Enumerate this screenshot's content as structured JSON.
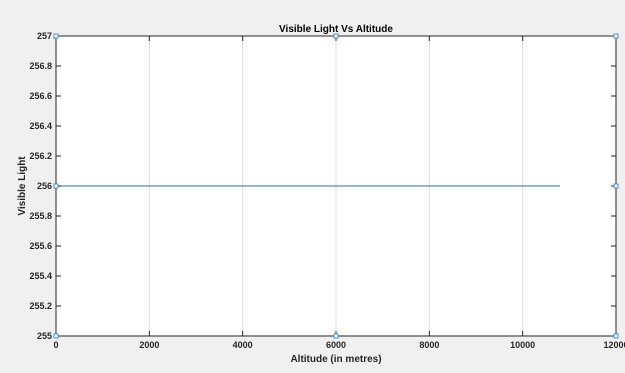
{
  "chart_data": {
    "type": "line",
    "title": "Visible Light Vs Altitude",
    "xlabel": "Altitude (in metres)",
    "ylabel": "Visible Light",
    "xlim": [
      0,
      12000
    ],
    "ylim": [
      255,
      257
    ],
    "xticks": [
      0,
      2000,
      4000,
      6000,
      8000,
      10000,
      12000
    ],
    "xtick_labels": [
      "0",
      "2000",
      "4000",
      "6000",
      "8000",
      "10000",
      "12000"
    ],
    "yticks": [
      255,
      255.2,
      255.4,
      255.6,
      255.8,
      256,
      256.2,
      256.4,
      256.6,
      256.8,
      257
    ],
    "ytick_labels": [
      "255",
      "255.2",
      "255.4",
      "255.6",
      "255.8",
      "256",
      "256.2",
      "256.4",
      "256.6",
      "256.8",
      "257"
    ],
    "grid": "vertical",
    "series": [
      {
        "x": [
          0,
          10800
        ],
        "y": [
          256,
          256
        ],
        "color": "#4a90c8"
      }
    ],
    "markers": [
      {
        "x": 0,
        "y": 257
      },
      {
        "x": 6000,
        "y": 257
      },
      {
        "x": 12000,
        "y": 257
      },
      {
        "x": 0,
        "y": 256
      },
      {
        "x": 12000,
        "y": 256
      },
      {
        "x": 0,
        "y": 255
      },
      {
        "x": 6000,
        "y": 255
      },
      {
        "x": 12000,
        "y": 255
      }
    ]
  },
  "colors": {
    "figure_background": "#f0f0f0",
    "axes_background": "#ffffff",
    "line": "#4a90c8",
    "grid": "#dcdcdc",
    "axis": "#262626",
    "marker": "#4a90c8"
  }
}
